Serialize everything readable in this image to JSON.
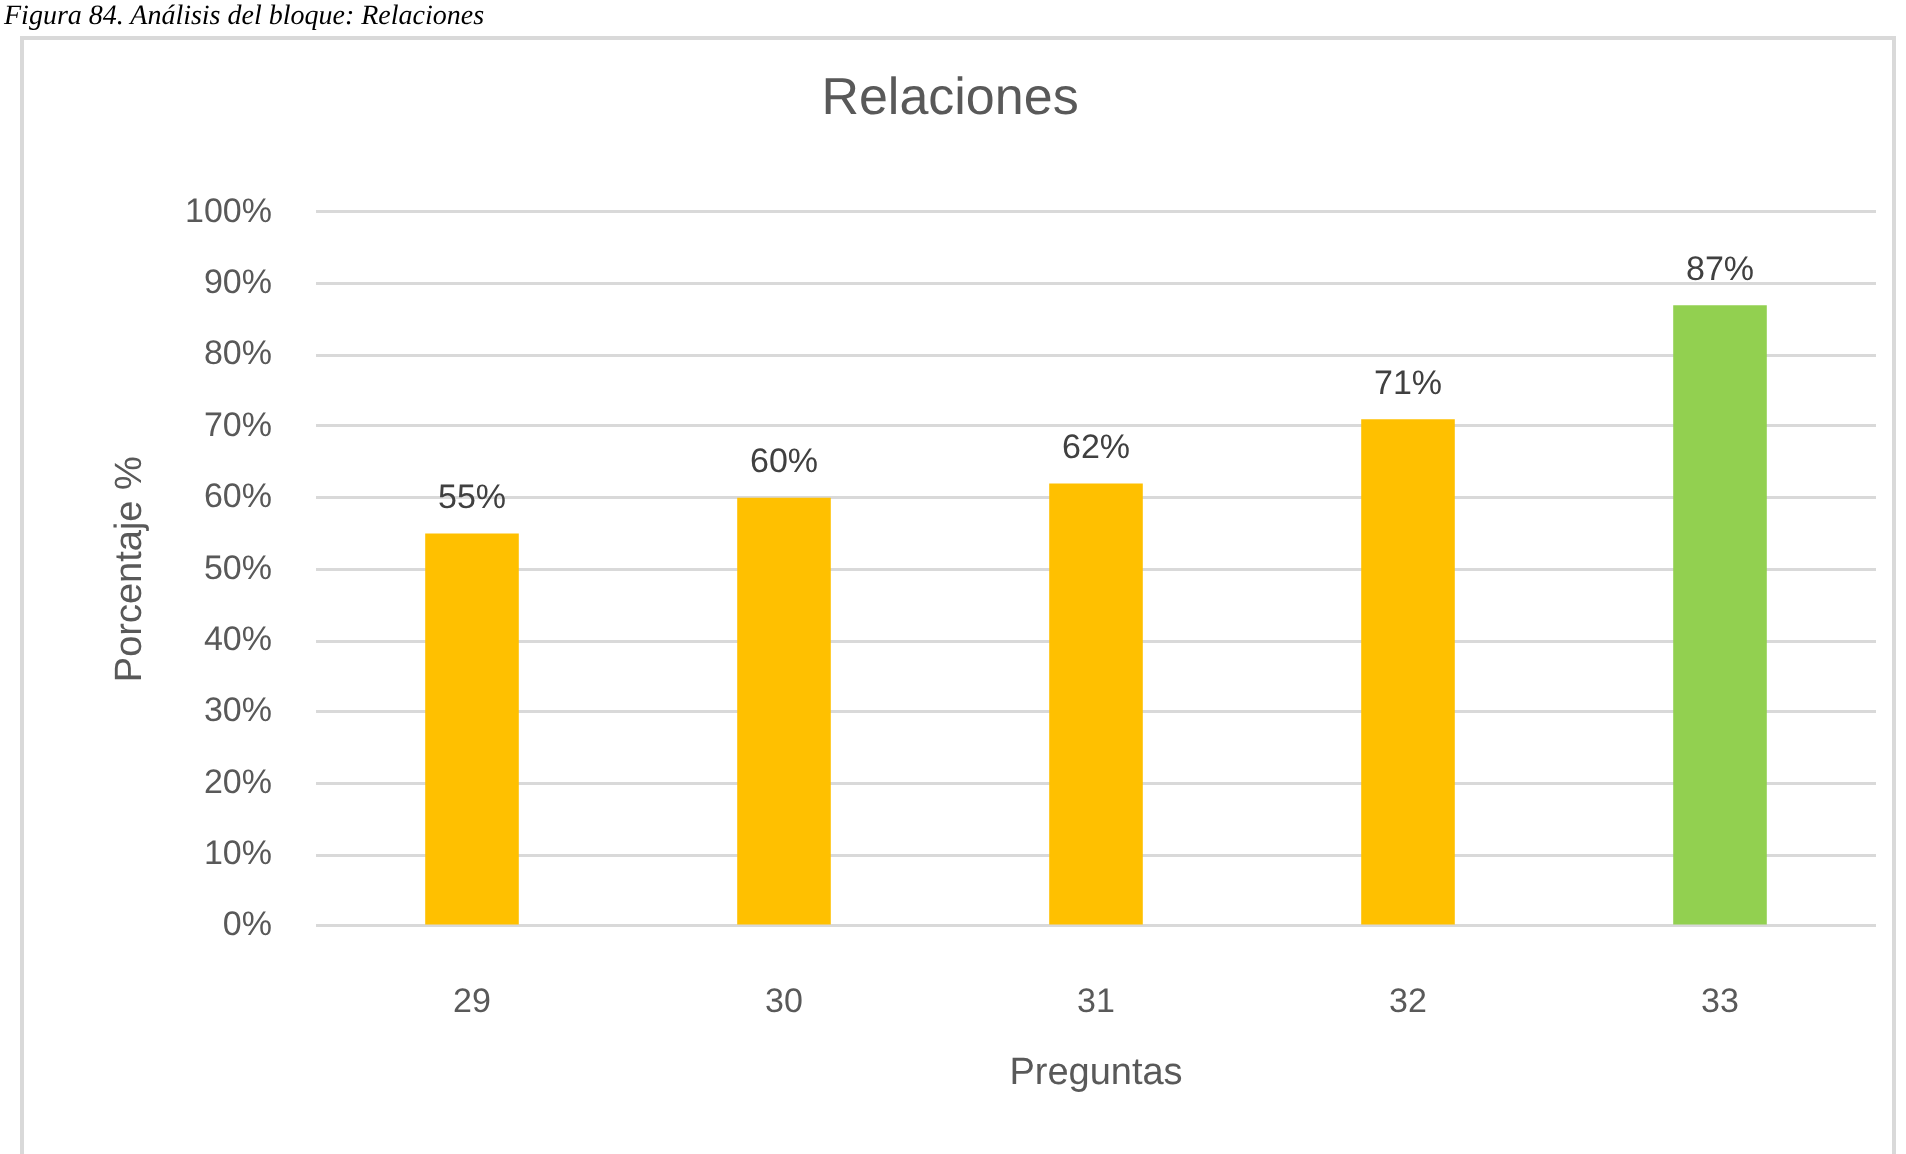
{
  "chart_data": {
    "type": "bar",
    "title": "Relaciones",
    "xlabel": "Preguntas",
    "ylabel": "Porcentaje %",
    "annotations": [
      "Figura 84. Análisis del bloque: Relaciones"
    ],
    "categories": [
      "29",
      "30",
      "31",
      "32",
      "33"
    ],
    "values": [
      55,
      60,
      62,
      71,
      87
    ],
    "colors": [
      "#ffc000",
      "#ffc000",
      "#ffc000",
      "#ffc000",
      "#92d050"
    ],
    "value_labels": [
      "55%",
      "60%",
      "62%",
      "71%",
      "87%"
    ],
    "ylim": [
      0,
      100
    ],
    "yticks": [
      {
        "value": 0,
        "label": "0%"
      },
      {
        "value": 10,
        "label": "10%"
      },
      {
        "value": 20,
        "label": "20%"
      },
      {
        "value": 30,
        "label": "30%"
      },
      {
        "value": 40,
        "label": "40%"
      },
      {
        "value": 50,
        "label": "50%"
      },
      {
        "value": 60,
        "label": "60%"
      },
      {
        "value": 70,
        "label": "70%"
      },
      {
        "value": 80,
        "label": "80%"
      },
      {
        "value": 90,
        "label": "90%"
      },
      {
        "value": 100,
        "label": "100%"
      }
    ],
    "grid": "y"
  }
}
